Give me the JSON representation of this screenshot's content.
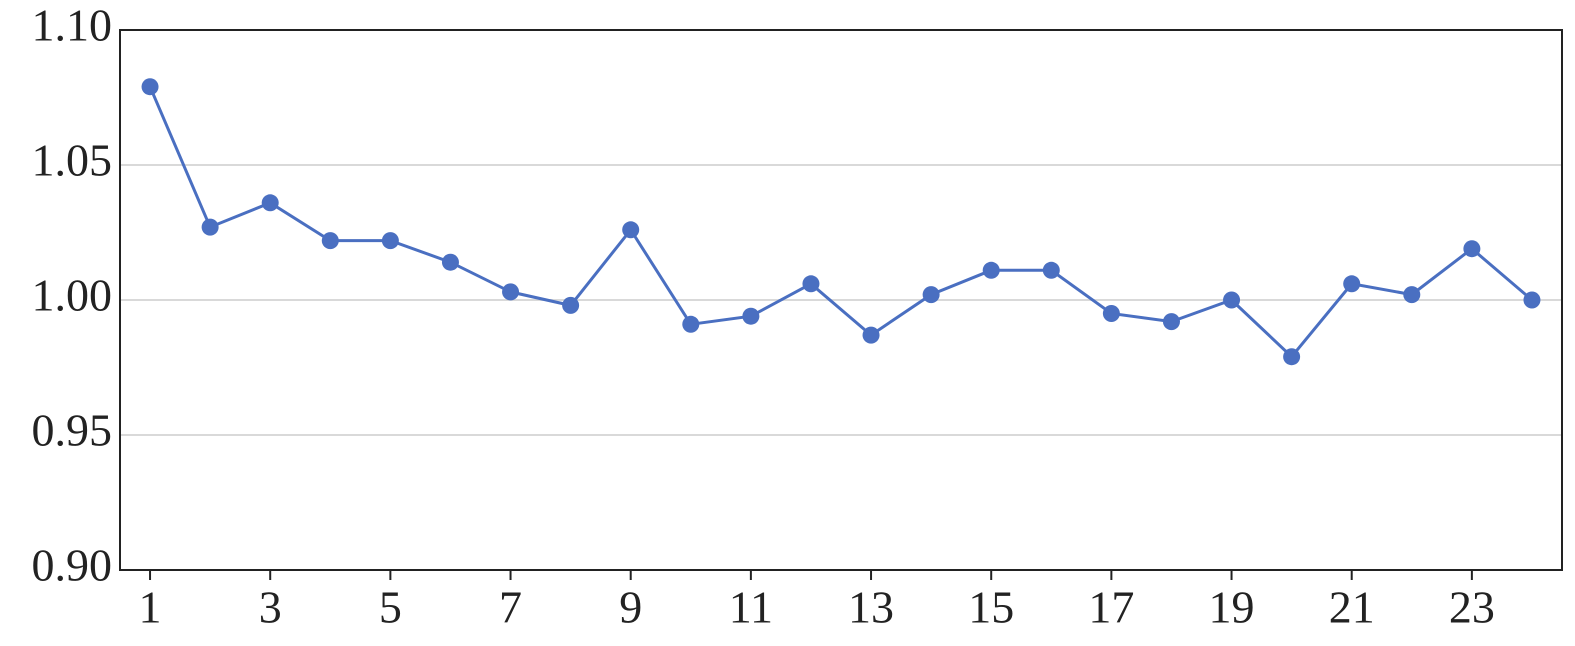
{
  "chart_data": {
    "type": "line",
    "x": [
      1,
      2,
      3,
      4,
      5,
      6,
      7,
      8,
      9,
      10,
      11,
      12,
      13,
      14,
      15,
      16,
      17,
      18,
      19,
      20,
      21,
      22,
      23,
      24
    ],
    "series": [
      {
        "color": "#4a6fc1",
        "values": [
          1.079,
          1.027,
          1.036,
          1.022,
          1.022,
          1.014,
          1.003,
          0.998,
          1.026,
          0.991,
          0.994,
          1.006,
          0.987,
          1.002,
          1.011,
          1.011,
          0.995,
          0.992,
          1.0,
          0.979,
          1.006,
          1.002,
          1.019,
          1.0
        ]
      }
    ],
    "xlim": [
      0.5,
      24.5
    ],
    "xticks": [
      1,
      3,
      5,
      7,
      9,
      11,
      13,
      15,
      17,
      19,
      21,
      23
    ],
    "ylim": [
      0.9,
      1.1
    ],
    "yticks": [
      {
        "value": 0.9,
        "label": "0.90"
      },
      {
        "value": 0.95,
        "label": "0.95"
      },
      {
        "value": 1.0,
        "label": "1.00"
      },
      {
        "value": 1.05,
        "label": "1.05"
      },
      {
        "value": 1.1,
        "label": "1.10"
      }
    ],
    "grid": true
  }
}
